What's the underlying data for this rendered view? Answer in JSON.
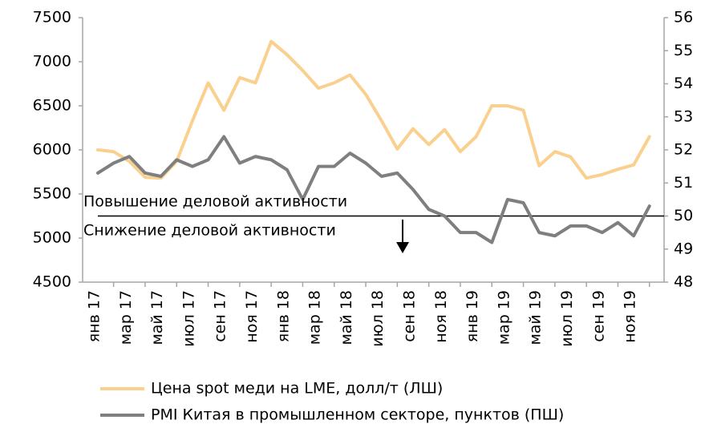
{
  "chart_data": {
    "type": "line",
    "categories": [
      "янв 17",
      null,
      "мар 17",
      null,
      "май 17",
      null,
      "июл 17",
      null,
      "сен 17",
      null,
      "ноя 17",
      null,
      "янв 18",
      null,
      "мар 18",
      null,
      "май 18",
      null,
      "июл 18",
      null,
      "сен 18",
      null,
      "ноя 18",
      null,
      "янв 19",
      null,
      "мар 19",
      null,
      "май 19",
      null,
      "июл 19",
      null,
      "сен 19",
      null,
      "ноя 19",
      null
    ],
    "series": [
      {
        "name": "Цена spot меди на LME, долл/т (ЛШ)",
        "color": "#fad08f",
        "axis": "y",
        "values": [
          6000,
          5980,
          5870,
          5690,
          5680,
          5870,
          6330,
          6760,
          6450,
          6820,
          6760,
          7230,
          7080,
          6900,
          6700,
          6760,
          6850,
          6630,
          6330,
          6010,
          6240,
          6060,
          6230,
          5980,
          6150,
          6500,
          6500,
          6450,
          5820,
          5980,
          5920,
          5680,
          5720,
          5780,
          5830,
          6150
        ]
      },
      {
        "name": "PMI Китая в промышленном секторе, пунктов (ПШ)",
        "color": "#7f7f7f",
        "axis": "y2",
        "values": [
          51.3,
          51.6,
          51.8,
          51.3,
          51.2,
          51.7,
          51.5,
          51.7,
          52.4,
          51.6,
          51.8,
          51.7,
          51.4,
          50.5,
          51.5,
          51.5,
          51.9,
          51.6,
          51.2,
          51.3,
          50.8,
          50.2,
          50.0,
          49.5,
          49.5,
          49.2,
          50.5,
          50.4,
          49.5,
          49.4,
          49.7,
          49.7,
          49.5,
          49.8,
          49.4,
          50.3
        ]
      }
    ],
    "ylim": [
      4500,
      7500
    ],
    "yticks": [
      4500,
      5000,
      5500,
      6000,
      6500,
      7000,
      7500
    ],
    "y2lim": [
      48,
      56
    ],
    "y2ticks": [
      48,
      49,
      50,
      51,
      52,
      53,
      54,
      55,
      56
    ],
    "reference_y2": 50,
    "annotations": [
      "Повышение деловой активности",
      "Снижение деловой активности"
    ]
  }
}
